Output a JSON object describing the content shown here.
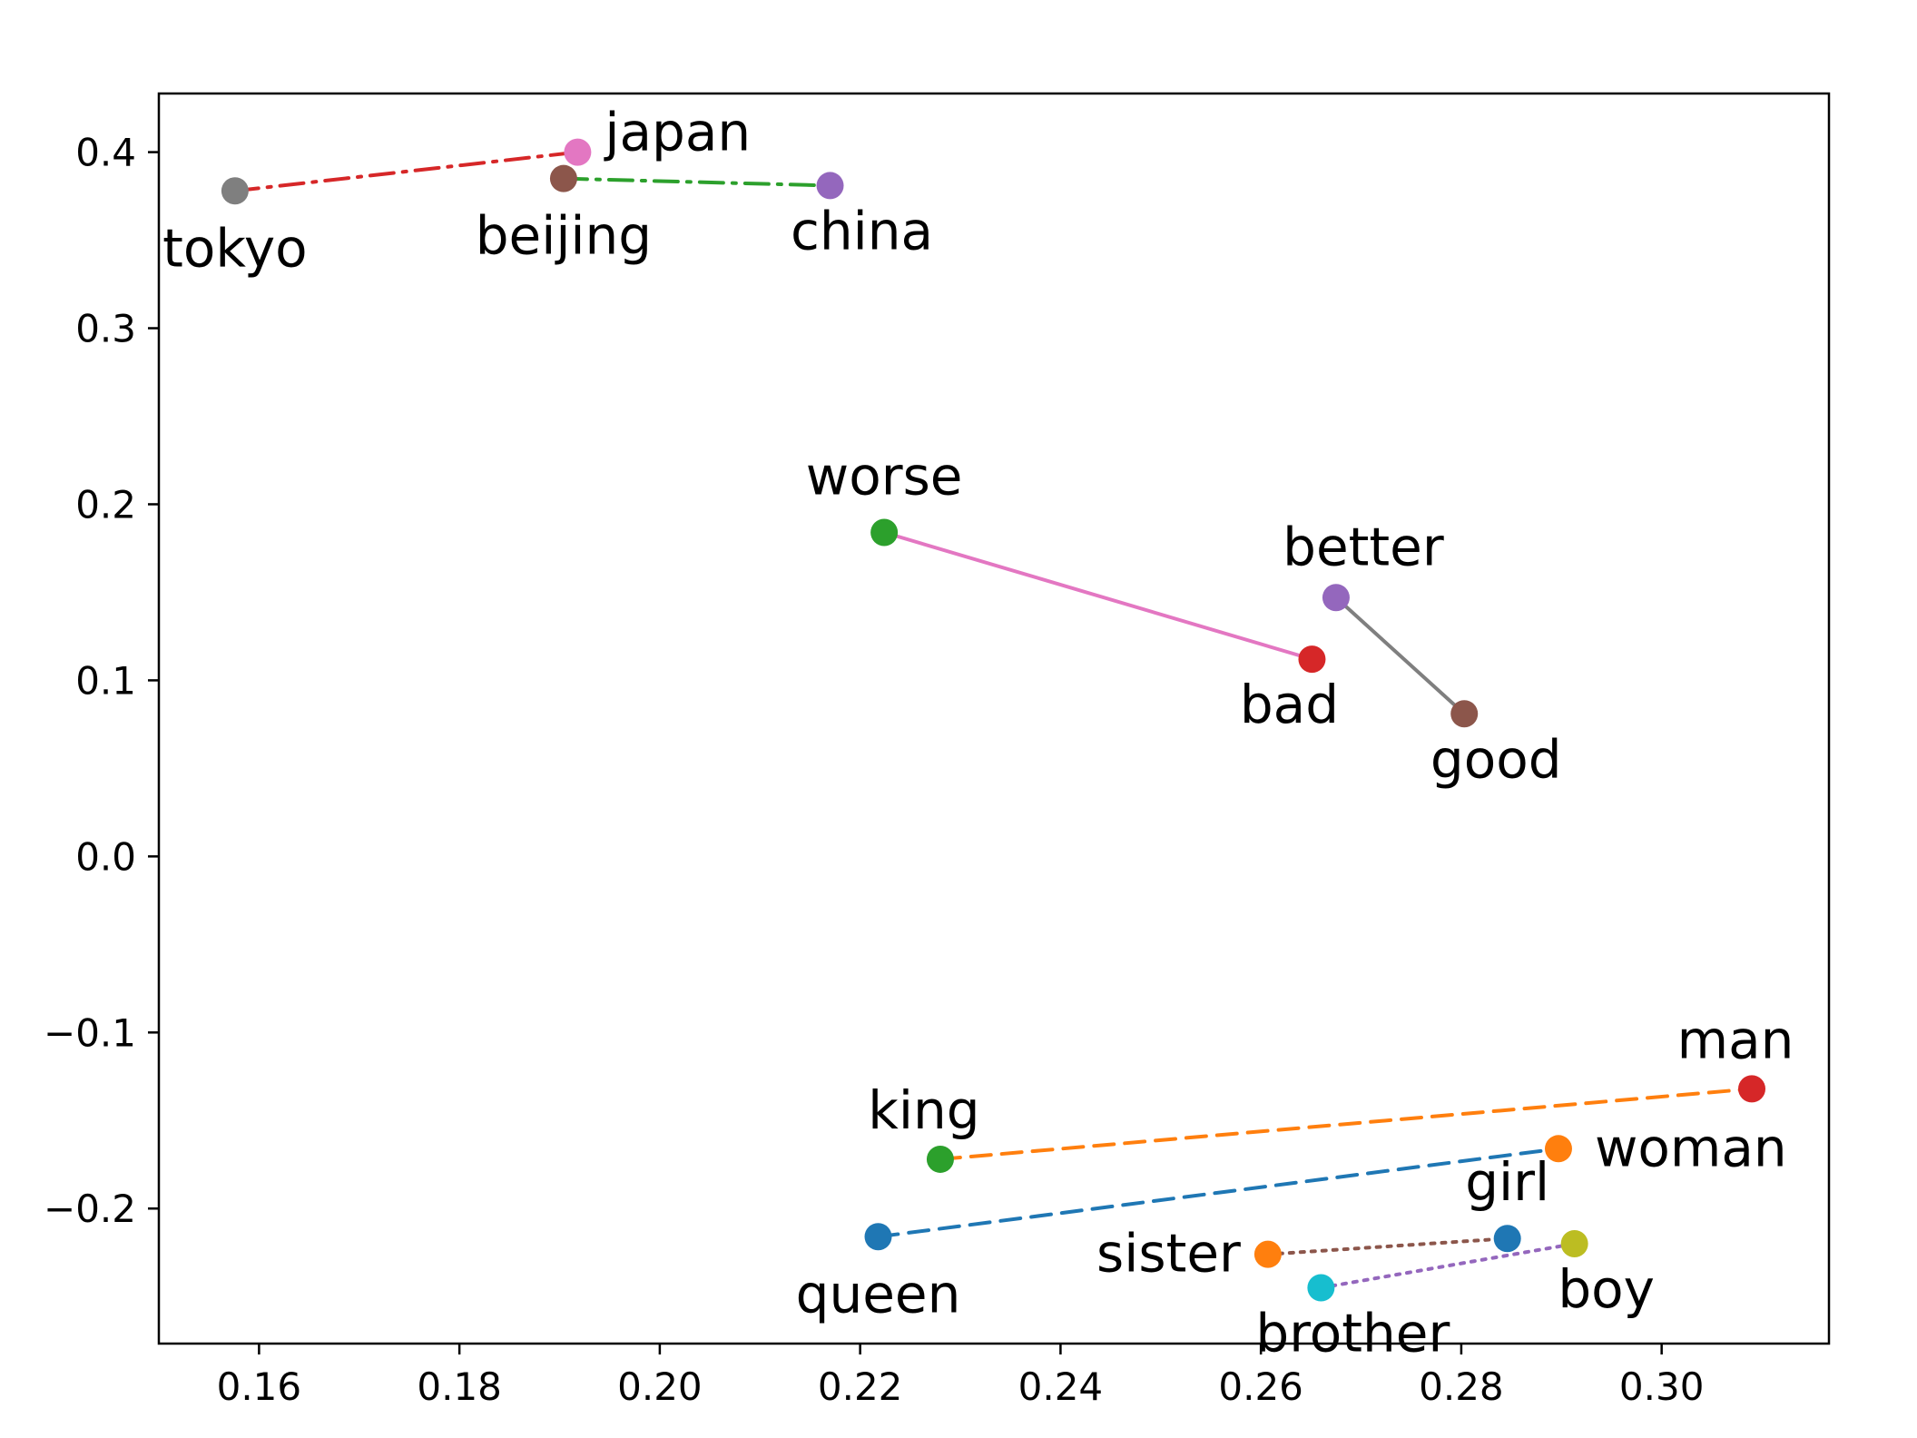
{
  "chart_data": {
    "type": "scatter",
    "title": "",
    "xlabel": "",
    "ylabel": "",
    "xlim": [
      0.15,
      0.3167
    ],
    "ylim": [
      -0.2767,
      0.4333
    ],
    "grid": false,
    "x_ticks": [
      0.16,
      0.18,
      0.2,
      0.22,
      0.24,
      0.26,
      0.28,
      0.3
    ],
    "x_tick_labels": [
      "0.16",
      "0.18",
      "0.20",
      "0.22",
      "0.24",
      "0.26",
      "0.28",
      "0.30"
    ],
    "y_ticks": [
      0.4,
      0.3,
      0.2,
      0.1,
      0.0,
      -0.1,
      -0.2
    ],
    "y_tick_labels": [
      "0.4",
      "0.3",
      "0.2",
      "0.1",
      "0.0",
      "−0.1",
      "−0.2"
    ],
    "points": [
      {
        "label": "tokyo",
        "x": 0.1576,
        "y": 0.378,
        "color": "#7f7f7f",
        "label_pos": "below"
      },
      {
        "label": "japan",
        "x": 0.1918,
        "y": 0.4,
        "color": "#e377c2",
        "label_pos": "right-up"
      },
      {
        "label": "beijing",
        "x": 0.1904,
        "y": 0.385,
        "color": "#8c564b",
        "label_pos": "below"
      },
      {
        "label": "china",
        "x": 0.217,
        "y": 0.381,
        "color": "#9467bd",
        "label_pos": "below-right"
      },
      {
        "label": "worse",
        "x": 0.2224,
        "y": 0.184,
        "color": "#2ca02c",
        "label_pos": "above"
      },
      {
        "label": "bad",
        "x": 0.2651,
        "y": 0.112,
        "color": "#d62728",
        "label_pos": "below-left"
      },
      {
        "label": "better",
        "x": 0.2675,
        "y": 0.147,
        "color": "#9467bd",
        "label_pos": "above-right"
      },
      {
        "label": "good",
        "x": 0.2803,
        "y": 0.081,
        "color": "#8c564b",
        "label_pos": "below-right"
      },
      {
        "label": "man",
        "x": 0.309,
        "y": -0.132,
        "color": "#d62728",
        "label_pos": "above-left"
      },
      {
        "label": "king",
        "x": 0.228,
        "y": -0.172,
        "color": "#2ca02c",
        "label_pos": "above-left"
      },
      {
        "label": "woman",
        "x": 0.2897,
        "y": -0.166,
        "color": "#ff7f0e",
        "label_pos": "right"
      },
      {
        "label": "queen",
        "x": 0.2218,
        "y": -0.216,
        "color": "#1f77b4",
        "label_pos": "below"
      },
      {
        "label": "girl",
        "x": 0.2846,
        "y": -0.217,
        "color": "#1f77b4",
        "label_pos": "above"
      },
      {
        "label": "sister",
        "x": 0.2607,
        "y": -0.226,
        "color": "#ff7f0e",
        "label_pos": "left"
      },
      {
        "label": "boy",
        "x": 0.2913,
        "y": -0.22,
        "color": "#bcbd22",
        "label_pos": "below-right"
      },
      {
        "label": "brother",
        "x": 0.266,
        "y": -0.245,
        "color": "#17becf",
        "label_pos": "below-right"
      }
    ],
    "pairs": [
      {
        "from": "tokyo",
        "to": "japan",
        "color": "#d62728",
        "style": "dashdot"
      },
      {
        "from": "beijing",
        "to": "china",
        "color": "#2ca02c",
        "style": "dashdot"
      },
      {
        "from": "worse",
        "to": "bad",
        "color": "#e377c2",
        "style": "solid"
      },
      {
        "from": "better",
        "to": "good",
        "color": "#7f7f7f",
        "style": "solid"
      },
      {
        "from": "king",
        "to": "man",
        "color": "#ff7f0e",
        "style": "dashed"
      },
      {
        "from": "queen",
        "to": "woman",
        "color": "#1f77b4",
        "style": "dashed"
      },
      {
        "from": "sister",
        "to": "girl",
        "color": "#8c564b",
        "style": "dotted"
      },
      {
        "from": "brother",
        "to": "boy",
        "color": "#9467bd",
        "style": "dotted"
      }
    ]
  }
}
